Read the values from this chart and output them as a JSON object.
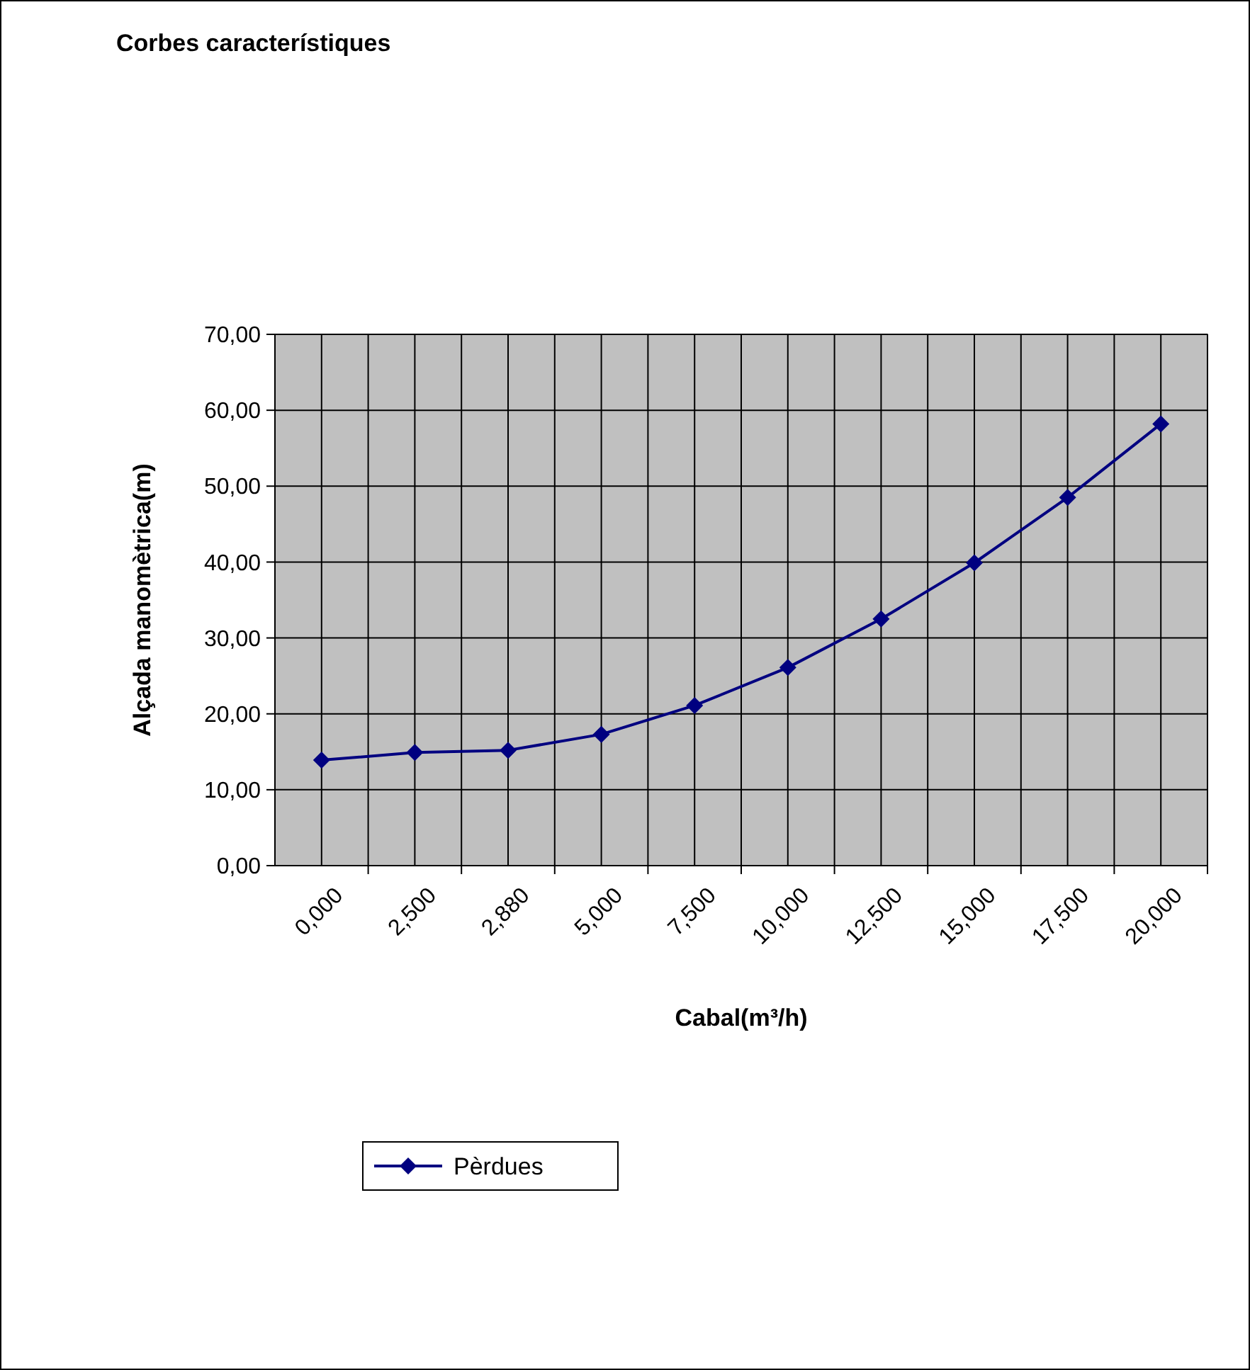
{
  "chart_data": {
    "type": "line",
    "title": "Corbes característiques",
    "xlabel": "Cabal(m³/h)",
    "ylabel": "Alçada manomètrica(m)",
    "categories": [
      "0,000",
      "2,500",
      "2,880",
      "5,000",
      "7,500",
      "10,000",
      "12,500",
      "15,000",
      "17,500",
      "20,000"
    ],
    "series": [
      {
        "name": "Pèrdues",
        "color": "#000080",
        "values": [
          13.9,
          14.9,
          15.2,
          17.3,
          21.1,
          26.1,
          32.5,
          39.9,
          48.5,
          58.2
        ]
      }
    ],
    "ylim": [
      0,
      70
    ],
    "yticks": [
      {
        "value": 0,
        "label": "0,00"
      },
      {
        "value": 10,
        "label": "10,00"
      },
      {
        "value": 20,
        "label": "20,00"
      },
      {
        "value": 30,
        "label": "30,00"
      },
      {
        "value": 40,
        "label": "40,00"
      },
      {
        "value": 50,
        "label": "50,00"
      },
      {
        "value": 60,
        "label": "60,00"
      },
      {
        "value": 70,
        "label": "70,00"
      }
    ],
    "grid": true,
    "legend": "bottom",
    "marker": "diamond",
    "line_style": "solid"
  }
}
